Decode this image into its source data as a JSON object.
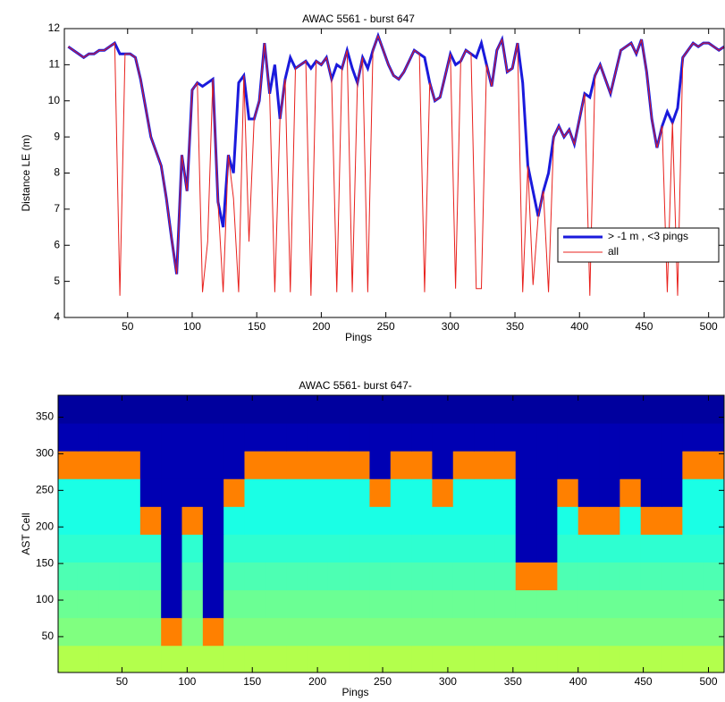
{
  "chart_data": [
    {
      "type": "line",
      "title": "AWAC 5561 - burst 647",
      "xlabel": "Pings",
      "ylabel": "Distance LE (m)",
      "xlim": [
        1,
        512
      ],
      "ylim": [
        4,
        12
      ],
      "xticks": [
        50,
        100,
        150,
        200,
        250,
        300,
        350,
        400,
        450,
        500
      ],
      "yticks": [
        4,
        5,
        6,
        7,
        8,
        9,
        10,
        11,
        12
      ],
      "legend": "lower right",
      "x": [
        4,
        8,
        12,
        16,
        20,
        24,
        28,
        32,
        36,
        40,
        44,
        48,
        52,
        56,
        60,
        64,
        68,
        72,
        76,
        80,
        84,
        88,
        92,
        96,
        100,
        104,
        108,
        112,
        116,
        120,
        124,
        128,
        132,
        136,
        140,
        144,
        148,
        152,
        156,
        160,
        164,
        168,
        172,
        176,
        180,
        184,
        188,
        192,
        196,
        200,
        204,
        208,
        212,
        216,
        220,
        224,
        228,
        232,
        236,
        240,
        244,
        248,
        252,
        256,
        260,
        264,
        268,
        272,
        276,
        280,
        284,
        288,
        292,
        296,
        300,
        304,
        308,
        312,
        316,
        320,
        324,
        328,
        332,
        336,
        340,
        344,
        348,
        352,
        356,
        360,
        364,
        368,
        372,
        376,
        380,
        384,
        388,
        392,
        396,
        400,
        404,
        408,
        412,
        416,
        420,
        424,
        428,
        432,
        436,
        440,
        444,
        448,
        452,
        456,
        460,
        464,
        468,
        472,
        476,
        480,
        484,
        488,
        492,
        496,
        500,
        504,
        508,
        512
      ],
      "series": [
        {
          "name": "> -1 m , <3 pings",
          "color": "#1a1adc",
          "width": 3,
          "values": [
            11.5,
            11.4,
            11.3,
            11.2,
            11.3,
            11.3,
            11.4,
            11.4,
            11.5,
            11.6,
            11.3,
            11.3,
            11.3,
            11.2,
            10.6,
            9.8,
            9.0,
            8.6,
            8.2,
            7.3,
            6.2,
            5.2,
            8.5,
            7.5,
            10.3,
            10.5,
            10.4,
            10.5,
            10.6,
            7.2,
            6.5,
            8.5,
            8.0,
            10.5,
            10.7,
            9.5,
            9.5,
            10.0,
            11.6,
            10.2,
            11.0,
            9.5,
            10.6,
            11.2,
            10.9,
            11.0,
            11.1,
            10.9,
            11.1,
            11.0,
            11.2,
            10.6,
            11.0,
            10.9,
            11.4,
            10.9,
            10.5,
            11.2,
            10.9,
            11.4,
            11.8,
            11.4,
            11.0,
            10.7,
            10.6,
            10.8,
            11.1,
            11.4,
            11.3,
            11.2,
            10.5,
            10.0,
            10.1,
            10.7,
            11.3,
            11.0,
            11.1,
            11.4,
            11.3,
            11.2,
            11.6,
            11.0,
            10.4,
            11.4,
            11.7,
            10.8,
            10.9,
            11.6,
            10.5,
            8.2,
            7.5,
            6.8,
            7.5,
            8.0,
            9.0,
            9.3,
            9.0,
            9.2,
            8.8,
            9.5,
            10.2,
            10.1,
            10.7,
            11.0,
            10.6,
            10.2,
            10.8,
            11.4,
            11.5,
            11.6,
            11.3,
            11.7,
            10.8,
            9.5,
            8.7,
            9.3,
            9.7,
            9.4,
            9.8,
            11.2,
            11.4,
            11.6,
            11.5,
            11.6,
            11.6,
            11.5,
            11.4,
            11.5
          ]
        },
        {
          "name": "all",
          "color": "#e8201c",
          "width": 1,
          "values": [
            11.5,
            11.4,
            11.3,
            11.2,
            11.3,
            11.3,
            11.4,
            11.4,
            11.5,
            11.6,
            4.6,
            11.3,
            11.3,
            11.2,
            10.6,
            9.8,
            9.0,
            8.6,
            8.2,
            7.3,
            6.2,
            5.2,
            8.5,
            7.5,
            10.3,
            10.5,
            4.7,
            6.1,
            10.6,
            7.2,
            4.7,
            8.5,
            7.3,
            4.7,
            10.7,
            6.1,
            9.5,
            10.0,
            11.6,
            10.2,
            4.7,
            9.5,
            10.6,
            4.7,
            10.9,
            11.0,
            11.1,
            4.6,
            11.1,
            11.0,
            11.2,
            10.6,
            4.7,
            10.9,
            11.4,
            4.7,
            10.5,
            11.2,
            4.7,
            11.4,
            11.8,
            11.4,
            11.0,
            10.7,
            10.6,
            10.8,
            11.1,
            11.4,
            11.3,
            4.7,
            10.5,
            10.0,
            10.1,
            10.7,
            11.3,
            4.8,
            11.1,
            11.4,
            11.3,
            4.8,
            4.8,
            11.0,
            10.4,
            11.4,
            11.7,
            10.8,
            10.9,
            11.6,
            4.7,
            8.2,
            4.9,
            6.8,
            7.5,
            4.7,
            9.0,
            9.3,
            9.0,
            9.2,
            8.8,
            9.5,
            10.2,
            4.6,
            10.7,
            11.0,
            10.6,
            10.2,
            10.8,
            11.4,
            11.5,
            11.6,
            11.3,
            11.7,
            10.8,
            9.5,
            8.7,
            9.3,
            4.7,
            9.4,
            4.6,
            11.2,
            11.4,
            11.6,
            11.5,
            11.6,
            11.6,
            11.5,
            11.4,
            11.5
          ]
        }
      ]
    },
    {
      "type": "heatmap",
      "title": "AWAC 5561- burst 647-",
      "xlabel": "Pings",
      "ylabel": "AST Cell",
      "xlim": [
        1,
        512
      ],
      "ylim": [
        1,
        380
      ],
      "zlim": [
        0,
        100
      ],
      "xticks": [
        50,
        100,
        150,
        200,
        250,
        300,
        350,
        400,
        450,
        500
      ],
      "yticks": [
        50,
        100,
        150,
        200,
        250,
        300,
        350
      ],
      "x": [
        8,
        24,
        40,
        56,
        72,
        88,
        104,
        120,
        136,
        152,
        168,
        184,
        200,
        216,
        232,
        248,
        264,
        280,
        296,
        312,
        328,
        344,
        360,
        376,
        392,
        408,
        424,
        440,
        456,
        472,
        488,
        504
      ],
      "y": [
        19,
        57,
        95,
        133,
        171,
        209,
        247,
        285,
        323,
        361
      ],
      "z": [
        [
          55,
          55,
          55,
          55,
          55,
          55,
          55,
          55,
          55,
          55,
          55,
          55,
          55,
          55,
          55,
          55,
          55,
          55,
          55,
          55,
          55,
          55,
          55,
          55,
          55,
          55,
          55,
          55,
          55,
          55,
          55,
          55
        ],
        [
          50,
          50,
          50,
          50,
          50,
          75,
          50,
          75,
          50,
          50,
          50,
          50,
          50,
          50,
          50,
          50,
          50,
          50,
          50,
          50,
          50,
          50,
          50,
          50,
          50,
          50,
          50,
          50,
          50,
          50,
          50,
          50
        ],
        [
          48,
          48,
          48,
          48,
          48,
          5,
          48,
          5,
          48,
          48,
          48,
          48,
          48,
          48,
          48,
          48,
          48,
          48,
          48,
          48,
          48,
          48,
          48,
          48,
          48,
          48,
          48,
          48,
          48,
          48,
          48,
          48
        ],
        [
          45,
          45,
          45,
          45,
          45,
          5,
          45,
          5,
          45,
          45,
          45,
          45,
          45,
          45,
          45,
          45,
          45,
          45,
          45,
          45,
          45,
          45,
          75,
          75,
          45,
          45,
          45,
          45,
          45,
          45,
          45,
          45
        ],
        [
          42,
          42,
          42,
          42,
          42,
          5,
          42,
          5,
          42,
          42,
          42,
          42,
          42,
          42,
          42,
          42,
          42,
          42,
          42,
          42,
          42,
          42,
          5,
          5,
          42,
          42,
          42,
          42,
          42,
          42,
          42,
          42
        ],
        [
          40,
          40,
          40,
          40,
          75,
          5,
          75,
          5,
          40,
          40,
          40,
          40,
          40,
          40,
          40,
          40,
          40,
          40,
          40,
          40,
          40,
          40,
          5,
          5,
          40,
          75,
          75,
          40,
          75,
          75,
          40,
          40
        ],
        [
          40,
          40,
          40,
          40,
          5,
          5,
          5,
          5,
          75,
          40,
          40,
          40,
          40,
          40,
          40,
          75,
          40,
          40,
          75,
          40,
          40,
          40,
          5,
          5,
          75,
          5,
          5,
          75,
          5,
          5,
          40,
          40
        ],
        [
          75,
          75,
          75,
          75,
          5,
          5,
          5,
          5,
          5,
          75,
          75,
          75,
          75,
          75,
          75,
          5,
          75,
          75,
          5,
          75,
          75,
          75,
          5,
          5,
          5,
          5,
          5,
          5,
          5,
          5,
          75,
          75
        ],
        [
          5,
          5,
          5,
          5,
          5,
          5,
          5,
          5,
          5,
          5,
          5,
          5,
          5,
          5,
          5,
          5,
          5,
          5,
          5,
          5,
          5,
          5,
          5,
          5,
          5,
          5,
          5,
          5,
          5,
          5,
          5,
          5
        ],
        [
          3,
          3,
          3,
          3,
          3,
          3,
          3,
          3,
          3,
          3,
          3,
          3,
          3,
          3,
          3,
          3,
          3,
          3,
          3,
          3,
          3,
          3,
          3,
          3,
          3,
          3,
          3,
          3,
          3,
          3,
          3,
          3
        ]
      ]
    }
  ]
}
